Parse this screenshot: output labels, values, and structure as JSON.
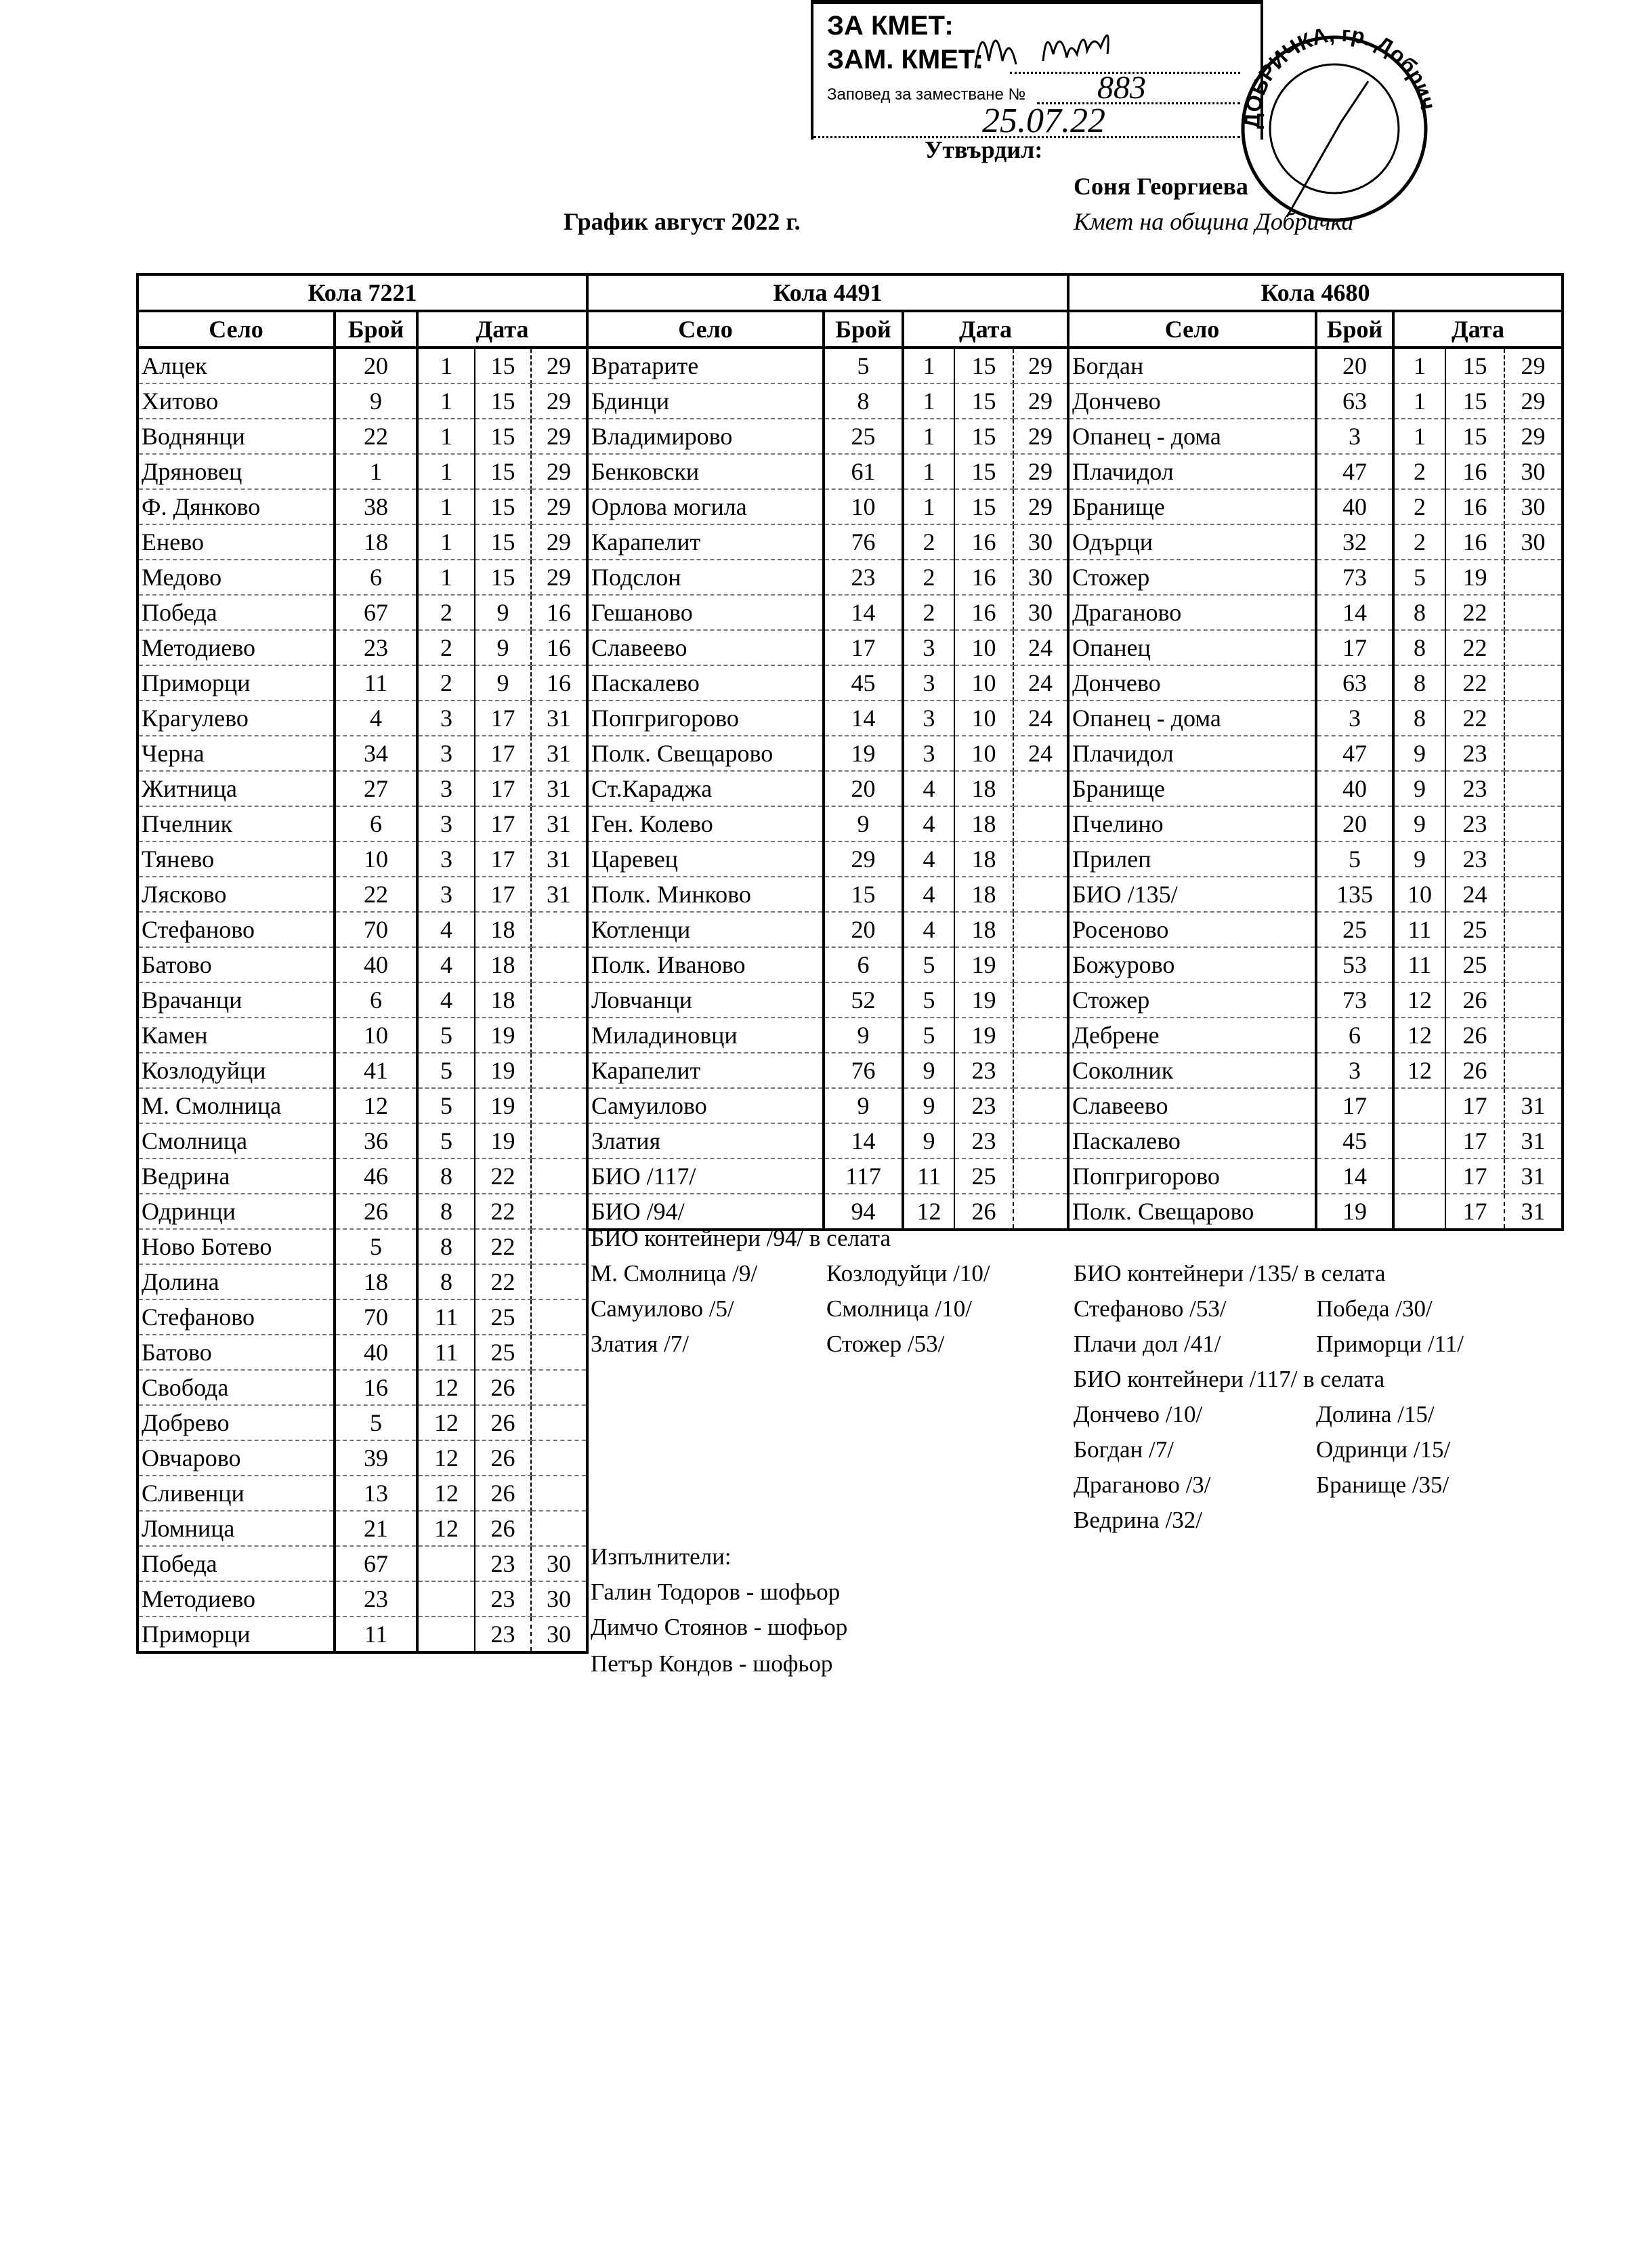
{
  "approval": {
    "for_mayor": "ЗА КМЕТ:",
    "deputy_mayor": "ЗАМ. КМЕТ:",
    "order_label": "Заповед за заместване №",
    "order_number": "883",
    "order_date": "25.07.22",
    "approved_label": "Утвърдил:",
    "approver_name": "Соня Георгиева",
    "approver_title": "Кмет на община Добричка",
    "stamp_text": "ДОБРИЧКА, гр. Добрич"
  },
  "title": "График август 2022 г.",
  "columns": {
    "village": "Село",
    "count": "Брой",
    "date": "Дата"
  },
  "vehicles": [
    {
      "label": "Кола 7221",
      "rows": [
        [
          "Алцек",
          "20",
          "1",
          "15",
          "29"
        ],
        [
          "Хитово",
          "9",
          "1",
          "15",
          "29"
        ],
        [
          "Воднянци",
          "22",
          "1",
          "15",
          "29"
        ],
        [
          "Дряновец",
          "1",
          "1",
          "15",
          "29"
        ],
        [
          "Ф. Дянково",
          "38",
          "1",
          "15",
          "29"
        ],
        [
          "Енево",
          "18",
          "1",
          "15",
          "29"
        ],
        [
          "Медово",
          "6",
          "1",
          "15",
          "29"
        ],
        [
          "Победа",
          "67",
          "2",
          "9",
          "16"
        ],
        [
          "Методиево",
          "23",
          "2",
          "9",
          "16"
        ],
        [
          "Приморци",
          "11",
          "2",
          "9",
          "16"
        ],
        [
          "Крагулево",
          "4",
          "3",
          "17",
          "31"
        ],
        [
          "Черна",
          "34",
          "3",
          "17",
          "31"
        ],
        [
          "Житница",
          "27",
          "3",
          "17",
          "31"
        ],
        [
          "Пчелник",
          "6",
          "3",
          "17",
          "31"
        ],
        [
          "Тянево",
          "10",
          "3",
          "17",
          "31"
        ],
        [
          "Лясково",
          "22",
          "3",
          "17",
          "31"
        ],
        [
          "Стефаново",
          "70",
          "4",
          "18",
          ""
        ],
        [
          "Батово",
          "40",
          "4",
          "18",
          ""
        ],
        [
          "Врачанци",
          "6",
          "4",
          "18",
          ""
        ],
        [
          "Камен",
          "10",
          "5",
          "19",
          ""
        ],
        [
          "Козлодуйци",
          "41",
          "5",
          "19",
          ""
        ],
        [
          "М. Смолница",
          "12",
          "5",
          "19",
          ""
        ],
        [
          "Смолница",
          "36",
          "5",
          "19",
          ""
        ],
        [
          "Ведрина",
          "46",
          "8",
          "22",
          ""
        ],
        [
          "Одринци",
          "26",
          "8",
          "22",
          ""
        ],
        [
          "Ново Ботево",
          "5",
          "8",
          "22",
          ""
        ],
        [
          "Долина",
          "18",
          "8",
          "22",
          ""
        ],
        [
          "Стефаново",
          "70",
          "11",
          "25",
          ""
        ],
        [
          "Батово",
          "40",
          "11",
          "25",
          ""
        ],
        [
          "Свобода",
          "16",
          "12",
          "26",
          ""
        ],
        [
          "Добрево",
          "5",
          "12",
          "26",
          ""
        ],
        [
          "Овчарово",
          "39",
          "12",
          "26",
          ""
        ],
        [
          "Сливенци",
          "13",
          "12",
          "26",
          ""
        ],
        [
          "Ломница",
          "21",
          "12",
          "26",
          ""
        ],
        [
          "Победа",
          "67",
          "",
          "23",
          "30"
        ],
        [
          "Методиево",
          "23",
          "",
          "23",
          "30"
        ],
        [
          "Приморци",
          "11",
          "",
          "23",
          "30"
        ]
      ]
    },
    {
      "label": "Кола 4491",
      "rows": [
        [
          "Вратарите",
          "5",
          "1",
          "15",
          "29"
        ],
        [
          "Бдинци",
          "8",
          "1",
          "15",
          "29"
        ],
        [
          "Владимирово",
          "25",
          "1",
          "15",
          "29"
        ],
        [
          "Бенковски",
          "61",
          "1",
          "15",
          "29"
        ],
        [
          "Орлова могила",
          "10",
          "1",
          "15",
          "29"
        ],
        [
          "Карапелит",
          "76",
          "2",
          "16",
          "30"
        ],
        [
          "Подслон",
          "23",
          "2",
          "16",
          "30"
        ],
        [
          "Гешаново",
          "14",
          "2",
          "16",
          "30"
        ],
        [
          "Славеево",
          "17",
          "3",
          "10",
          "24"
        ],
        [
          "Паскалево",
          "45",
          "3",
          "10",
          "24"
        ],
        [
          "Попгригорово",
          "14",
          "3",
          "10",
          "24"
        ],
        [
          "Полк. Свещарово",
          "19",
          "3",
          "10",
          "24"
        ],
        [
          "Ст.Караджа",
          "20",
          "4",
          "18",
          ""
        ],
        [
          "Ген. Колево",
          "9",
          "4",
          "18",
          ""
        ],
        [
          "Царевец",
          "29",
          "4",
          "18",
          ""
        ],
        [
          "Полк. Минково",
          "15",
          "4",
          "18",
          ""
        ],
        [
          "Котленци",
          "20",
          "4",
          "18",
          ""
        ],
        [
          "Полк. Иваново",
          "6",
          "5",
          "19",
          ""
        ],
        [
          "Ловчанци",
          "52",
          "5",
          "19",
          ""
        ],
        [
          "Миладиновци",
          "9",
          "5",
          "19",
          ""
        ],
        [
          "Карапелит",
          "76",
          "9",
          "23",
          ""
        ],
        [
          "Самуилово",
          "9",
          "9",
          "23",
          ""
        ],
        [
          "Златия",
          "14",
          "9",
          "23",
          ""
        ],
        [
          "БИО /117/",
          "117",
          "11",
          "25",
          ""
        ],
        [
          "БИО /94/",
          "94",
          "12",
          "26",
          ""
        ]
      ]
    },
    {
      "label": "Кола 4680",
      "rows": [
        [
          "Богдан",
          "20",
          "1",
          "15",
          "29"
        ],
        [
          "Дончево",
          "63",
          "1",
          "15",
          "29"
        ],
        [
          "Опанец - дома",
          "3",
          "1",
          "15",
          "29"
        ],
        [
          "Плачидол",
          "47",
          "2",
          "16",
          "30"
        ],
        [
          "Бранище",
          "40",
          "2",
          "16",
          "30"
        ],
        [
          "Одърци",
          "32",
          "2",
          "16",
          "30"
        ],
        [
          "Стожер",
          "73",
          "5",
          "19",
          ""
        ],
        [
          "Драганово",
          "14",
          "8",
          "22",
          ""
        ],
        [
          "Опанец",
          "17",
          "8",
          "22",
          ""
        ],
        [
          "Дончево",
          "63",
          "8",
          "22",
          ""
        ],
        [
          "Опанец - дома",
          "3",
          "8",
          "22",
          ""
        ],
        [
          "Плачидол",
          "47",
          "9",
          "23",
          ""
        ],
        [
          "Бранище",
          "40",
          "9",
          "23",
          ""
        ],
        [
          "Пчелино",
          "20",
          "9",
          "23",
          ""
        ],
        [
          "Прилеп",
          "5",
          "9",
          "23",
          ""
        ],
        [
          "БИО /135/",
          "135",
          "10",
          "24",
          ""
        ],
        [
          "Росеново",
          "25",
          "11",
          "25",
          ""
        ],
        [
          "Божурово",
          "53",
          "11",
          "25",
          ""
        ],
        [
          "Стожер",
          "73",
          "12",
          "26",
          ""
        ],
        [
          "Дебрене",
          "6",
          "12",
          "26",
          ""
        ],
        [
          "Соколник",
          "3",
          "12",
          "26",
          ""
        ],
        [
          "Славеево",
          "17",
          "",
          "17",
          "31"
        ],
        [
          "Паскалево",
          "45",
          "",
          "17",
          "31"
        ],
        [
          "Попгригорово",
          "14",
          "",
          "17",
          "31"
        ],
        [
          "Полк. Свещарово",
          "19",
          "",
          "17",
          "31"
        ]
      ]
    }
  ],
  "bio_notes": {
    "bio94": {
      "heading": "БИО контейнери /94/ в селата",
      "items": [
        "М. Смолница /9/",
        "Козлодуйци /10/",
        "Самуилово /5/",
        "Смолница /10/",
        "Златия /7/",
        "Стожер /53/"
      ]
    },
    "bio135": {
      "heading": "БИО контейнери /135/ в селата",
      "items": [
        "Стефаново /53/",
        "Победа /30/",
        "Плачи дол /41/",
        "Приморци /11/"
      ]
    },
    "bio117": {
      "heading": "БИО контейнери /117/ в селата",
      "items": [
        "Дончево /10/",
        "Долина /15/",
        "Богдан /7/",
        "Одринци /15/",
        "Драганово /3/",
        "Бранище /35/",
        "Ведрина /32/"
      ]
    }
  },
  "executors": {
    "heading": "Изпълнители:",
    "people": [
      "Галин Тодоров - шофьор",
      "Димчо Стоянов - шофьор",
      "Петър Кондов - шофьор"
    ]
  }
}
